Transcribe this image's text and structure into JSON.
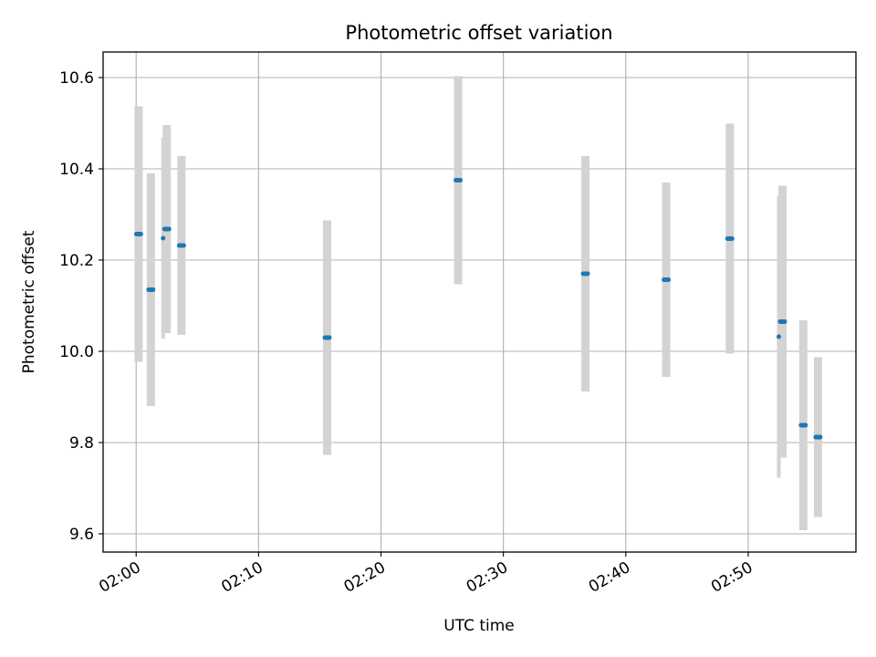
{
  "chart_data": {
    "type": "scatter",
    "title": "Photometric offset variation",
    "xlabel": "UTC time",
    "ylabel": "Photometric offset",
    "x_tick_labels": [
      "02:00",
      "02:10",
      "02:20",
      "02:30",
      "02:40",
      "02:50"
    ],
    "x_ticks_minutes_after_0200": [
      0,
      10,
      20,
      30,
      40,
      50
    ],
    "y_ticks": [
      9.6,
      9.8,
      10.0,
      10.2,
      10.4,
      10.6
    ],
    "y_tick_labels": [
      "9.6",
      "9.8",
      "10.0",
      "10.2",
      "10.4",
      "10.6"
    ],
    "xlim_minutes_after_0200": [
      -2.7,
      58.8
    ],
    "ylim": [
      9.56,
      10.656
    ],
    "grid": true,
    "colors": {
      "points": "#1f77b4",
      "error_bars": "#d3d3d3",
      "grid": "#b0b0b0"
    },
    "points": [
      {
        "time": "02:00:12",
        "y": 10.257,
        "y_err": 0.28,
        "size": "large"
      },
      {
        "time": "02:01:12",
        "y": 10.135,
        "y_err": 0.255,
        "size": "large"
      },
      {
        "time": "02:02:12",
        "y": 10.248,
        "y_err": 0.22,
        "size": "small"
      },
      {
        "time": "02:02:30",
        "y": 10.268,
        "y_err": 0.228,
        "size": "large"
      },
      {
        "time": "02:03:42",
        "y": 10.232,
        "y_err": 0.196,
        "size": "large"
      },
      {
        "time": "02:15:36",
        "y": 10.03,
        "y_err": 0.257,
        "size": "large"
      },
      {
        "time": "02:26:18",
        "y": 10.375,
        "y_err": 0.228,
        "size": "large"
      },
      {
        "time": "02:36:42",
        "y": 10.17,
        "y_err": 0.258,
        "size": "large"
      },
      {
        "time": "02:43:18",
        "y": 10.157,
        "y_err": 0.213,
        "size": "large"
      },
      {
        "time": "02:48:30",
        "y": 10.247,
        "y_err": 0.252,
        "size": "large"
      },
      {
        "time": "02:52:30",
        "y": 10.032,
        "y_err": 0.309,
        "size": "small"
      },
      {
        "time": "02:52:48",
        "y": 10.065,
        "y_err": 0.298,
        "size": "large"
      },
      {
        "time": "02:54:30",
        "y": 9.838,
        "y_err": 0.23,
        "size": "large"
      },
      {
        "time": "02:55:42",
        "y": 9.812,
        "y_err": 0.175,
        "size": "large"
      }
    ]
  }
}
